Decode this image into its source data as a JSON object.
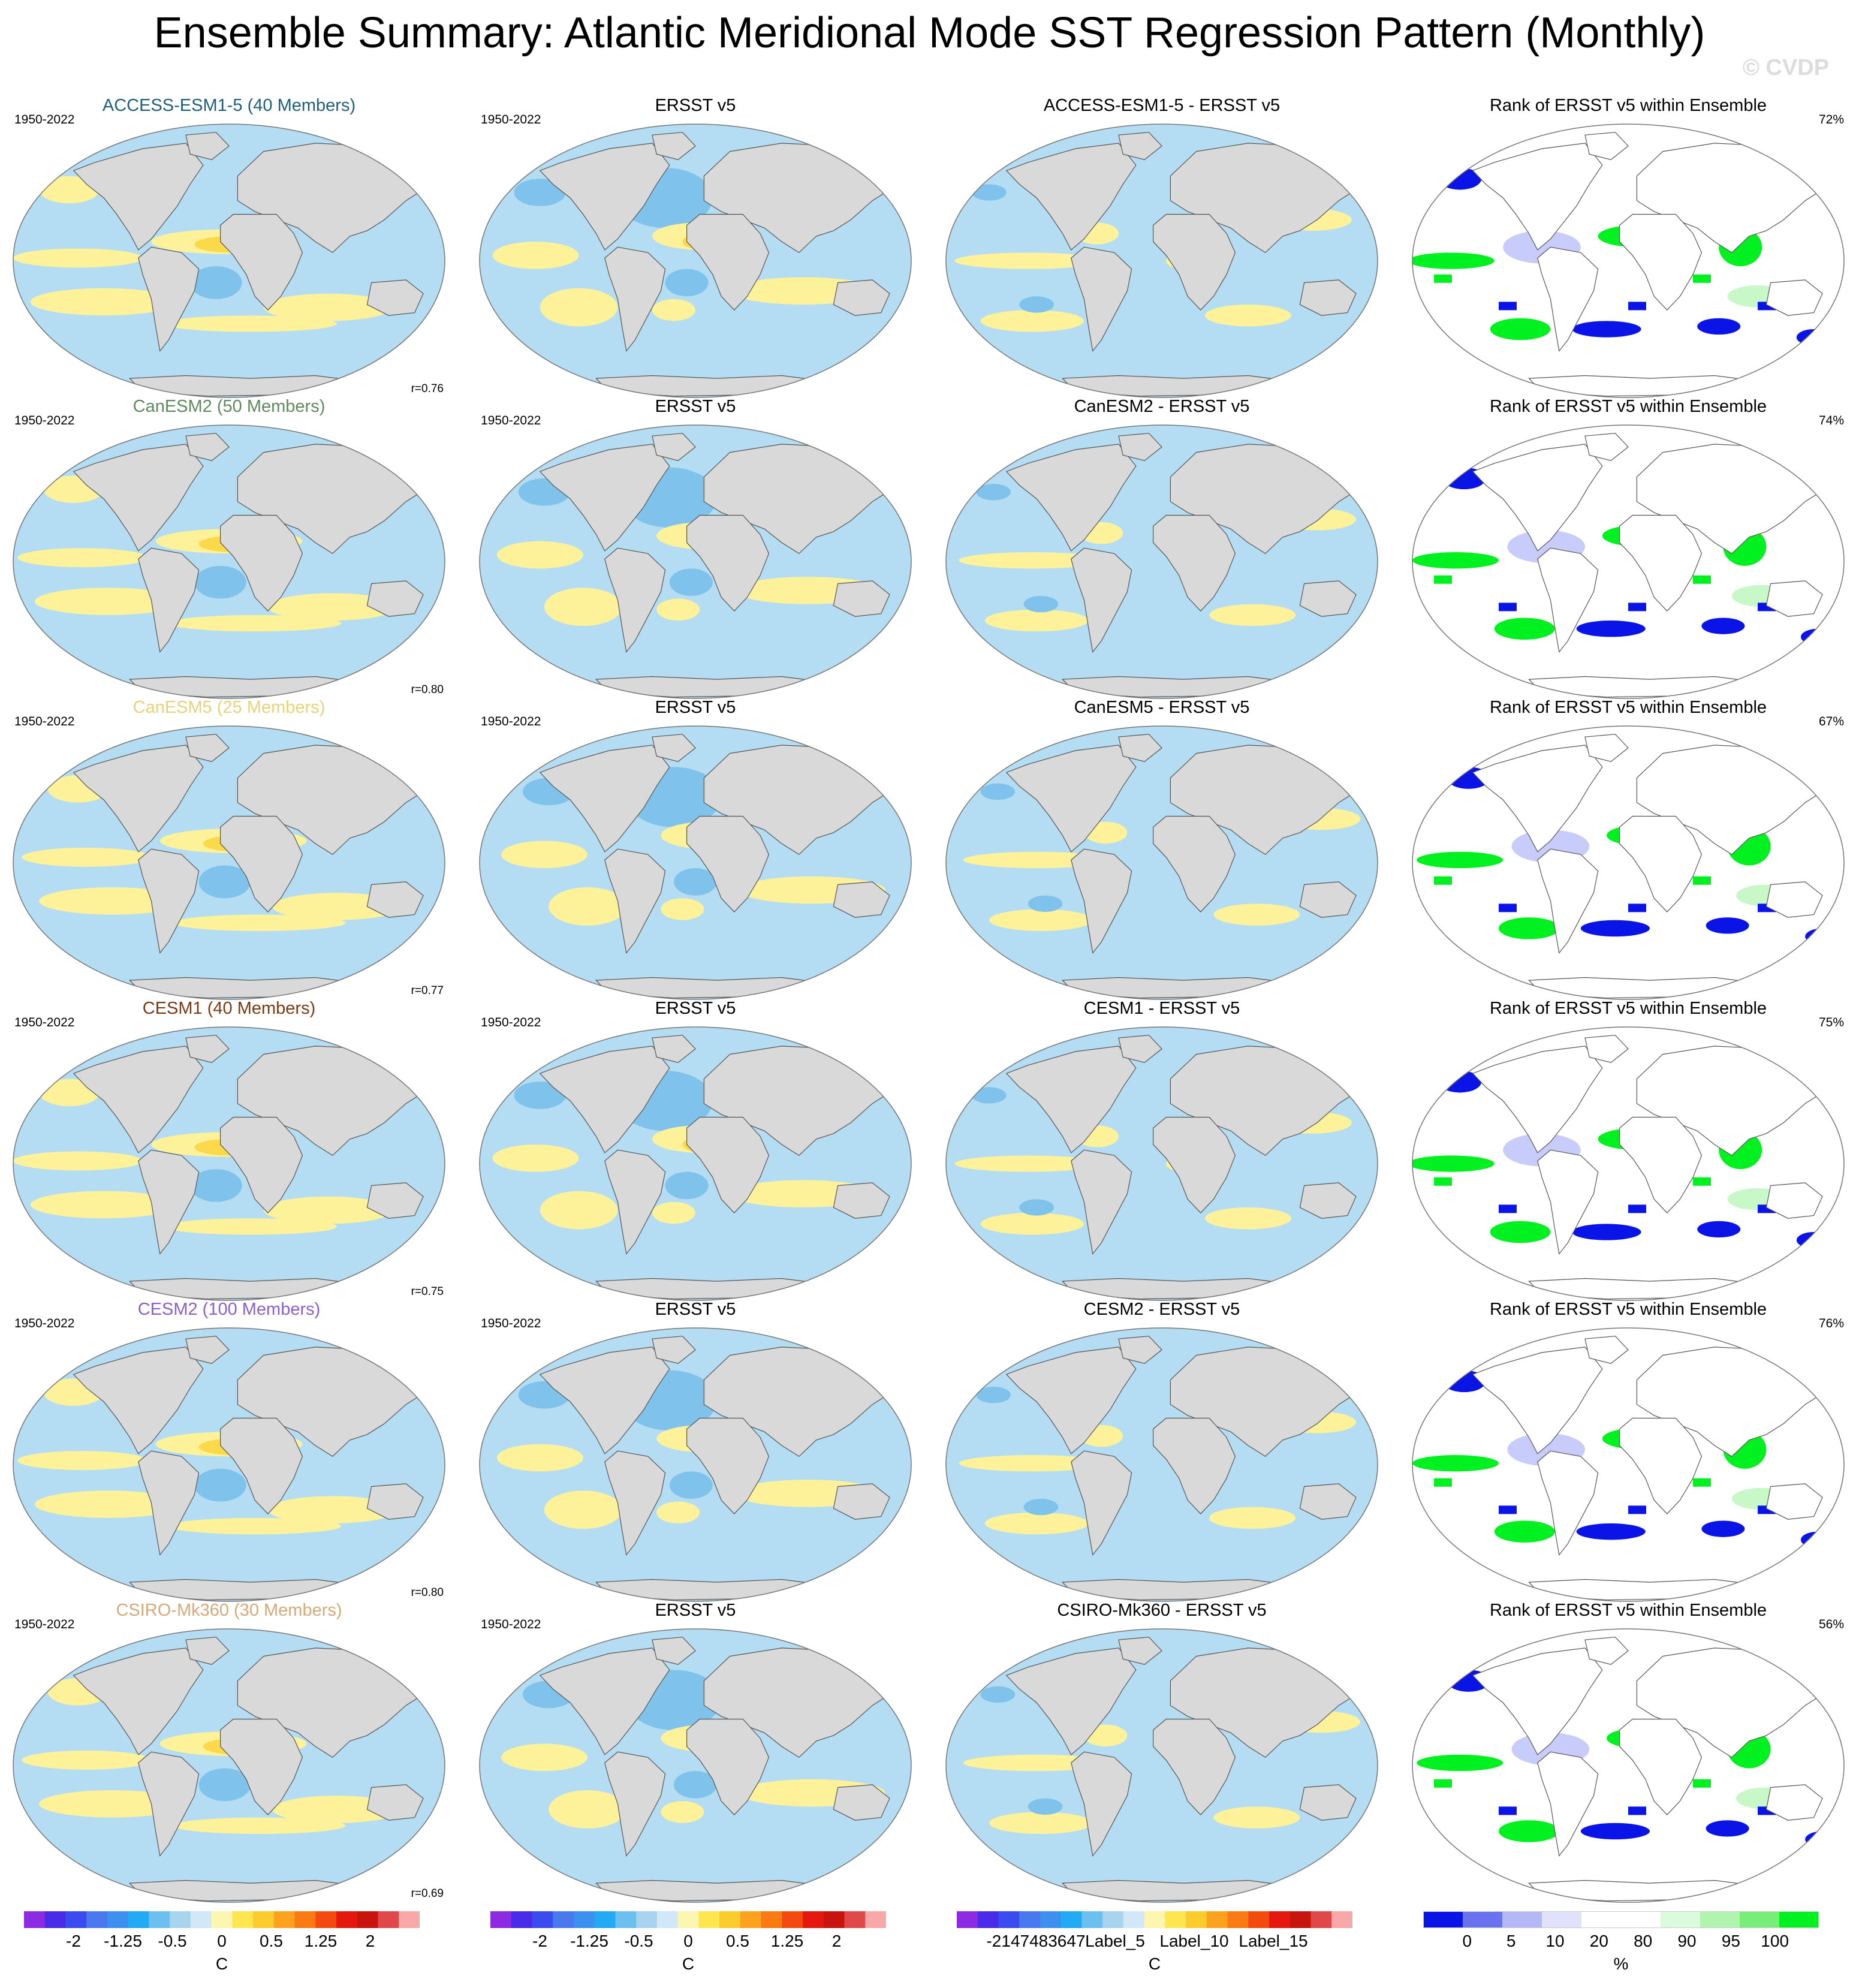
{
  "figure": {
    "title": "Ensemble Summary: Atlantic Meridional Mode SST Regression Pattern (Monthly)",
    "watermark": "© CVDP"
  },
  "colors": {
    "ocean_blue": "#b4dcf2",
    "blue_mid": "#7fc3ec",
    "blue_dark": "#4aa6e0",
    "yellow": "#fdf29a",
    "orange_light": "#fcd94a",
    "orange": "#f6b82e",
    "land": "#d9d9d9",
    "rank_blue": "#0a14e6",
    "rank_lightblue": "#c8ccfa",
    "rank_green": "#00f020",
    "rank_lightgreen": "#c8f7c8"
  },
  "rows": [
    {
      "model_title": "ACCESS-ESM1-5 (40 Members)",
      "model_color": "#1f5f7a",
      "period": "1950-2022",
      "r": "r=0.76",
      "obs_title": "ERSST v5",
      "obs_period": "1950-2022",
      "diff_title": "ACCESS-ESM1-5 - ERSST v5",
      "rank_title": "Rank of ERSST v5 within Ensemble",
      "rank_pct": "72%"
    },
    {
      "model_title": "CanESM2 (50 Members)",
      "model_color": "#5f8a5f",
      "period": "1950-2022",
      "r": "r=0.80",
      "obs_title": "ERSST v5",
      "obs_period": "1950-2022",
      "diff_title": "CanESM2 - ERSST v5",
      "rank_title": "Rank of ERSST v5 within Ensemble",
      "rank_pct": "74%"
    },
    {
      "model_title": "CanESM5 (25 Members)",
      "model_color": "#e8d27a",
      "period": "1950-2022",
      "r": "r=0.77",
      "obs_title": "ERSST v5",
      "obs_period": "1950-2022",
      "diff_title": "CanESM5 - ERSST v5",
      "rank_title": "Rank of ERSST v5 within Ensemble",
      "rank_pct": "67%"
    },
    {
      "model_title": "CESM1 (40 Members)",
      "model_color": "#7a3a14",
      "period": "1950-2022",
      "r": "r=0.75",
      "obs_title": "ERSST v5",
      "obs_period": "1950-2022",
      "diff_title": "CESM1 - ERSST v5",
      "rank_title": "Rank of ERSST v5 within Ensemble",
      "rank_pct": "75%"
    },
    {
      "model_title": "CESM2 (100 Members)",
      "model_color": "#8a5fd0",
      "period": "1950-2022",
      "r": "r=0.80",
      "obs_title": "ERSST v5",
      "obs_period": "1950-2022",
      "diff_title": "CESM2 - ERSST v5",
      "rank_title": "Rank of ERSST v5 within Ensemble",
      "rank_pct": "76%"
    },
    {
      "model_title": "CSIRO-Mk360 (30 Members)",
      "model_color": "#d8a878",
      "period": "1950-2022",
      "r": "r=0.69",
      "obs_title": "ERSST v5",
      "obs_period": "1950-2022",
      "diff_title": "CSIRO-Mk360 - ERSST v5",
      "rank_title": "Rank of ERSST v5 within Ensemble",
      "rank_pct": "56%"
    }
  ],
  "colorbars": {
    "model": {
      "labels": [
        "-2",
        "-1.25",
        "-0.5",
        "0",
        "0.5",
        "1.25",
        "2"
      ],
      "unit": "C",
      "colors": [
        "#8c2be2",
        "#4a2bea",
        "#3a4cf0",
        "#4a78ee",
        "#3e90f0",
        "#22aaf4",
        "#6cc0f0",
        "#a8d4f0",
        "#d2e8f8",
        "#fcf6b0",
        "#fde650",
        "#fccc2e",
        "#fca21e",
        "#fa7a14",
        "#f44a10",
        "#e4180c",
        "#c8140c",
        "#e0484a",
        "#f8a8a8"
      ]
    },
    "obs": {
      "labels": [
        "-2",
        "-1.25",
        "-0.5",
        "0",
        "0.5",
        "1.25",
        "2"
      ],
      "unit": "C",
      "colors": [
        "#8c2be2",
        "#4a2bea",
        "#3a4cf0",
        "#4a78ee",
        "#3e90f0",
        "#22aaf4",
        "#6cc0f0",
        "#a8d4f0",
        "#d2e8f8",
        "#fcf6b0",
        "#fde650",
        "#fccc2e",
        "#fca21e",
        "#fa7a14",
        "#f44a10",
        "#e4180c",
        "#c8140c",
        "#e0484a",
        "#f8a8a8"
      ]
    },
    "diff": {
      "labels": [
        "-2147483647",
        "Label_5",
        "Label_10",
        "Label_15"
      ],
      "unit": "C",
      "colors": [
        "#8c2be2",
        "#4a2bea",
        "#3a4cf0",
        "#4a78ee",
        "#3e90f0",
        "#22aaf4",
        "#6cc0f0",
        "#a8d4f0",
        "#d2e8f8",
        "#fcf6b0",
        "#fde650",
        "#fccc2e",
        "#fca21e",
        "#fa7a14",
        "#f44a10",
        "#e4180c",
        "#c8140c",
        "#e0484a",
        "#f8a8a8"
      ]
    },
    "rank": {
      "labels": [
        "0",
        "5",
        "10",
        "20",
        "80",
        "90",
        "95",
        "100"
      ],
      "unit": "%",
      "colors": [
        "#0a14e6",
        "#6a72f0",
        "#b4b8f6",
        "#e0e2fb",
        "#ffffff",
        "#ffffff",
        "#dcfadc",
        "#b0f4b0",
        "#78ee78",
        "#00f020"
      ]
    }
  }
}
